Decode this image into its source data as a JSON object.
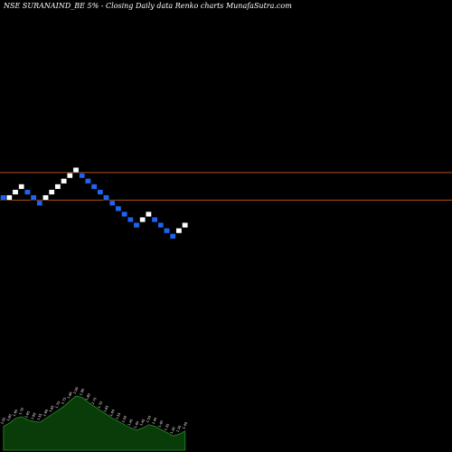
{
  "chart_data": {
    "type": "renko",
    "title": "NSE SURANAIND_BE 5% -  Closing Daily data  Renko  charts MunafaSutra.com",
    "colors": {
      "background": "#000000",
      "up_brick": "#ffffff",
      "down_brick": "#1e64f0",
      "reference_line": "#b4501e",
      "volume_fill": "#0a3c0a",
      "volume_stroke": "#2a8a2a"
    },
    "reference_lines": [
      {
        "level": 1
      },
      {
        "level": -4
      }
    ],
    "bricks": [
      {
        "dir": "down",
        "level": -3
      },
      {
        "dir": "up",
        "level": -3
      },
      {
        "dir": "up",
        "level": -2
      },
      {
        "dir": "up",
        "level": -1
      },
      {
        "dir": "down",
        "level": -2
      },
      {
        "dir": "down",
        "level": -3
      },
      {
        "dir": "down",
        "level": -4
      },
      {
        "dir": "up",
        "level": -3
      },
      {
        "dir": "up",
        "level": -2
      },
      {
        "dir": "up",
        "level": -1
      },
      {
        "dir": "up",
        "level": 0
      },
      {
        "dir": "up",
        "level": 1
      },
      {
        "dir": "up",
        "level": 2
      },
      {
        "dir": "down",
        "level": 1
      },
      {
        "dir": "down",
        "level": 0
      },
      {
        "dir": "down",
        "level": -1
      },
      {
        "dir": "down",
        "level": -2
      },
      {
        "dir": "down",
        "level": -3
      },
      {
        "dir": "down",
        "level": -4
      },
      {
        "dir": "down",
        "level": -5
      },
      {
        "dir": "down",
        "level": -6
      },
      {
        "dir": "down",
        "level": -7
      },
      {
        "dir": "down",
        "level": -8
      },
      {
        "dir": "up",
        "level": -7
      },
      {
        "dir": "up",
        "level": -6
      },
      {
        "dir": "down",
        "level": -7
      },
      {
        "dir": "down",
        "level": -8
      },
      {
        "dir": "down",
        "level": -9
      },
      {
        "dir": "down",
        "level": -10
      },
      {
        "dir": "up",
        "level": -9
      },
      {
        "dir": "up",
        "level": -8
      }
    ],
    "volume": {
      "values": [
        30,
        34,
        40,
        42,
        38,
        36,
        35,
        40,
        45,
        50,
        55,
        62,
        68,
        66,
        60,
        55,
        50,
        45,
        40,
        36,
        32,
        28,
        25,
        28,
        32,
        30,
        26,
        22,
        18,
        20,
        24
      ],
      "labels": [
        "1.55",
        "1.60",
        "1.65",
        "1.70",
        "1.65",
        "1.60",
        "1.55",
        "1.60",
        "1.65",
        "1.70",
        "1.75",
        "1.80",
        "2.00",
        "1.90",
        "1.80",
        "1.75",
        "1.70",
        "1.65",
        "1.60",
        "1.55",
        "1.50",
        "1.45",
        "1.40",
        "1.45",
        "1.50",
        "1.45",
        "1.40",
        "1.35",
        "1.30",
        "1.35",
        "1.40"
      ]
    }
  }
}
